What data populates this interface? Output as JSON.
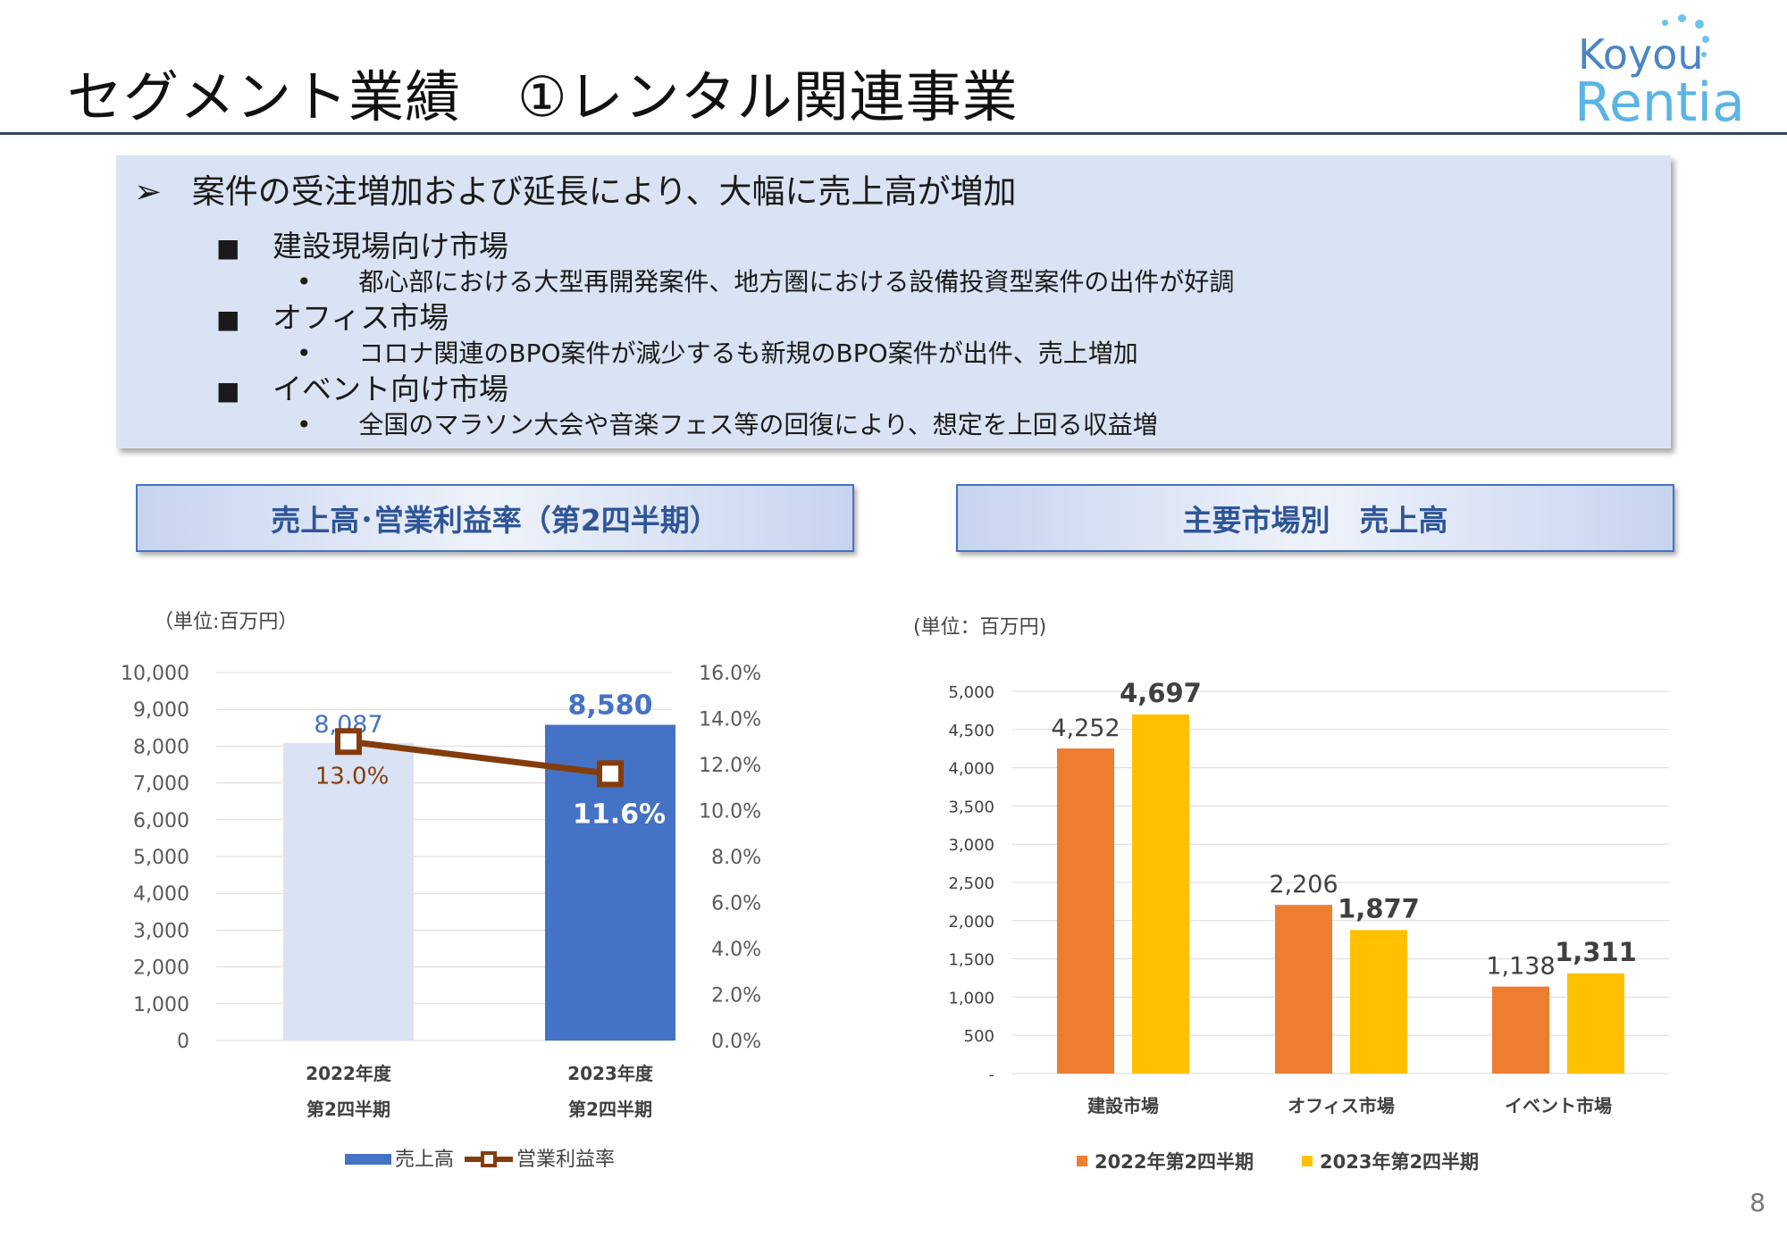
{
  "header": {
    "title": "セグメント業績　①レンタル関連事業"
  },
  "logo": {
    "line1": "Koyou",
    "line2": "Rentia"
  },
  "summary": {
    "headline_marker": "➢",
    "headline": "案件の受注増加および延長により、大幅に売上高が増加",
    "items": [
      {
        "marker": "■",
        "label": "建設現場向け市場",
        "detail_marker": "•",
        "detail": "都心部における大型再開発案件、地方圏における設備投資型案件の出件が好調"
      },
      {
        "marker": "■",
        "label": "オフィス市場",
        "detail_marker": "•",
        "detail": "コロナ関連のBPO案件が減少するも新規のBPO案件が出件、売上増加"
      },
      {
        "marker": "■",
        "label": "イベント向け市場",
        "detail_marker": "•",
        "detail": "全国のマラソン大会や音楽フェス等の回復により、想定を上回る収益増"
      }
    ]
  },
  "left_section": {
    "header": "売上高･営業利益率（第2四半期）",
    "unit": "（単位:百万円）"
  },
  "right_section": {
    "header": "主要市場別　売上高",
    "unit": "(単位：百万円)"
  },
  "page_number": "8",
  "chart_data": [
    {
      "type": "bar",
      "categories": [
        [
          "2022年度",
          "第2四半期"
        ],
        [
          "2023年度",
          "第2四半期"
        ]
      ],
      "series": [
        {
          "name": "売上高",
          "kind": "bar",
          "axis": "left",
          "values": [
            8087,
            8580
          ],
          "labels": [
            "8,087",
            "8,580"
          ],
          "colors": [
            "#dae3f3",
            "#4472c4"
          ],
          "label_colors": [
            "#4472c4",
            "#4472c4"
          ]
        },
        {
          "name": "営業利益率",
          "kind": "line",
          "axis": "right",
          "values": [
            13.0,
            11.6
          ],
          "labels": [
            "13.0%",
            "11.6%"
          ],
          "color": "#843c0c",
          "label_colors": [
            "#843c0c",
            "#ffffff"
          ]
        }
      ],
      "y_left": {
        "range": [
          0,
          10000
        ],
        "ticks": [
          "0",
          "1,000",
          "2,000",
          "3,000",
          "4,000",
          "5,000",
          "6,000",
          "7,000",
          "8,000",
          "9,000",
          "10,000"
        ]
      },
      "y_right": {
        "range": [
          0,
          16
        ],
        "ticks": [
          "0.0%",
          "2.0%",
          "4.0%",
          "6.0%",
          "8.0%",
          "10.0%",
          "12.0%",
          "14.0%",
          "16.0%"
        ]
      },
      "grid": true,
      "legend": "bottom"
    },
    {
      "type": "bar",
      "categories": [
        "建設市場",
        "オフィス市場",
        "イベント市場"
      ],
      "series": [
        {
          "name": "2022年第2四半期",
          "values": [
            4252,
            2206,
            1138
          ],
          "labels": [
            "4,252",
            "2,206",
            "1,138"
          ],
          "color": "#ed7d31"
        },
        {
          "name": "2023年第2四半期",
          "values": [
            4697,
            1877,
            1311
          ],
          "labels": [
            "4,697",
            "1,877",
            "1,311"
          ],
          "color": "#ffc000"
        }
      ],
      "y": {
        "range": [
          0,
          5000
        ],
        "ticks": [
          "-",
          "500",
          "1,000",
          "1,500",
          "2,000",
          "2,500",
          "3,000",
          "3,500",
          "4,000",
          "4,500",
          "5,000"
        ]
      },
      "grid": true,
      "legend": "bottom"
    }
  ]
}
